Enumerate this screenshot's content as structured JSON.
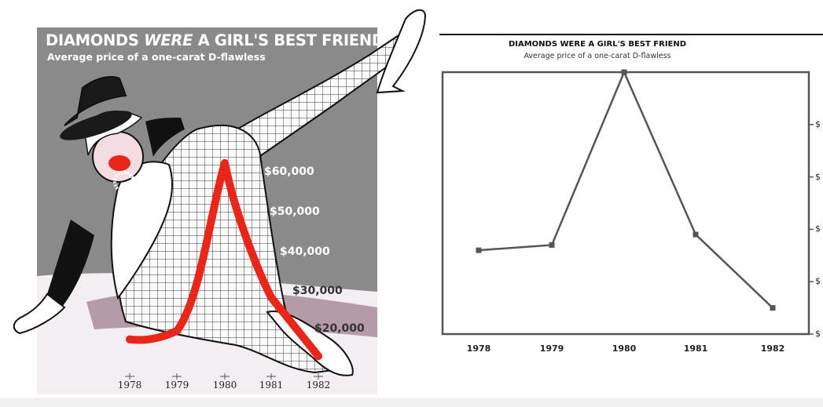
{
  "chart_data": [
    {
      "type": "line",
      "title": "DIAMONDS WERE A GIRL'S BEST FRIEND",
      "title_parts": [
        "DIAMONDS ",
        "WERE",
        " A GIRL'S BEST FRIEND"
      ],
      "subtitle": "Average price of a one-carat D-flawless",
      "categories": [
        "1978",
        "1979",
        "1980",
        "1981",
        "1982"
      ],
      "values": [
        18000,
        20000,
        60000,
        28000,
        14000
      ],
      "y_tick_labels": [
        "$60,000",
        "$50,000",
        "$40,000",
        "$30,000",
        "$20,000"
      ],
      "y_tick_values": [
        60000,
        50000,
        40000,
        30000,
        20000
      ],
      "ylim": [
        10000,
        65000
      ],
      "line_color": "#e8261a",
      "style": "illustrated",
      "background_color": "#8a8a8a"
    },
    {
      "type": "line",
      "title": "DIAMONDS WERE A GIRL'S BEST FRIEND",
      "subtitle": "Average price of a one-carat D-flawless",
      "categories": [
        "1978",
        "1979",
        "1980",
        "1981",
        "1982"
      ],
      "values": [
        26000,
        27000,
        60000,
        29000,
        15000
      ],
      "y_tick_labels": [
        "$",
        "$",
        "$",
        "$",
        "$"
      ],
      "y_tick_values": [
        50000,
        40000,
        30000,
        20000,
        10000
      ],
      "ylim": [
        10000,
        60000
      ],
      "line_color": "#555555",
      "grid": false
    }
  ]
}
